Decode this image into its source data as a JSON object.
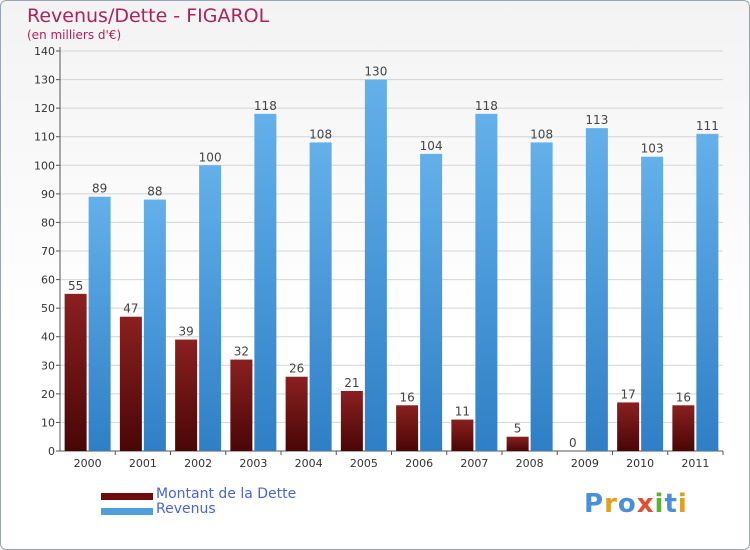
{
  "title": "Revenus/Dette - FIGAROL",
  "subtitle": "(en milliers d'€)",
  "legend": [
    {
      "label": "Montant de la Dette",
      "color": "#6e0c0c"
    },
    {
      "label": "Revenus",
      "color": "#4f9fe0"
    }
  ],
  "logo_text": "Proxiti",
  "chart_data": {
    "type": "bar",
    "title": "Revenus/Dette - FIGAROL",
    "subtitle": "(en milliers d'€)",
    "categories": [
      "2000",
      "2001",
      "2002",
      "2003",
      "2004",
      "2005",
      "2006",
      "2007",
      "2008",
      "2009",
      "2010",
      "2011"
    ],
    "series": [
      {
        "name": "Montant de la Dette",
        "color": "#7a1515",
        "values": [
          55,
          47,
          39,
          32,
          26,
          21,
          16,
          11,
          5,
          0,
          17,
          16
        ]
      },
      {
        "name": "Revenus",
        "color": "#4f9fe0",
        "values": [
          89,
          88,
          100,
          118,
          108,
          130,
          104,
          118,
          108,
          113,
          103,
          111
        ]
      }
    ],
    "ylim": [
      0,
      140
    ],
    "yticks": [
      0,
      10,
      20,
      30,
      40,
      50,
      60,
      70,
      80,
      90,
      100,
      110,
      120,
      130,
      140
    ],
    "grid": true,
    "legend_position": "bottom-left"
  }
}
